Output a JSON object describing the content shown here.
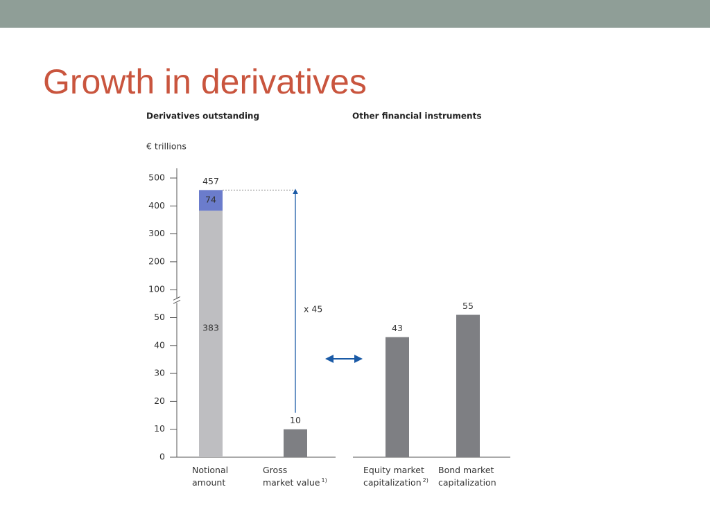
{
  "title": "Growth in derivatives",
  "chart_data": {
    "type": "bar",
    "stacked": true,
    "y_label": "€ trillions",
    "ylim": [
      0,
      500
    ],
    "yticks": [
      0,
      10,
      20,
      30,
      40,
      50,
      100,
      200,
      300,
      400,
      500
    ],
    "axis_break": true,
    "annotation": "x 45",
    "panels": [
      {
        "title": "Derivatives outstanding",
        "categories": [
          [
            "Notional",
            "amount"
          ],
          [
            "Gross",
            "market value"
          ]
        ],
        "notes": [
          null,
          "1)"
        ],
        "series": [
          {
            "color": "#bebec1",
            "label_position": "inside",
            "values": [
              383,
              null
            ]
          },
          {
            "color": "#6b7ccc",
            "label_position": "inside",
            "label_color": "#ffffff",
            "values": [
              74,
              null
            ]
          },
          {
            "color": "#7e7f83",
            "label_position": "top",
            "values": [
              null,
              10
            ]
          }
        ],
        "totals": [
          457,
          null
        ]
      },
      {
        "title": "Other financial instruments",
        "categories": [
          [
            "Equity market",
            "capitalization"
          ],
          [
            "Bond market",
            "capitalization"
          ]
        ],
        "notes": [
          "2)",
          null
        ],
        "series": [
          {
            "color": "#7e7f83",
            "label_position": "top",
            "values": [
              43,
              55
            ]
          }
        ]
      }
    ]
  }
}
